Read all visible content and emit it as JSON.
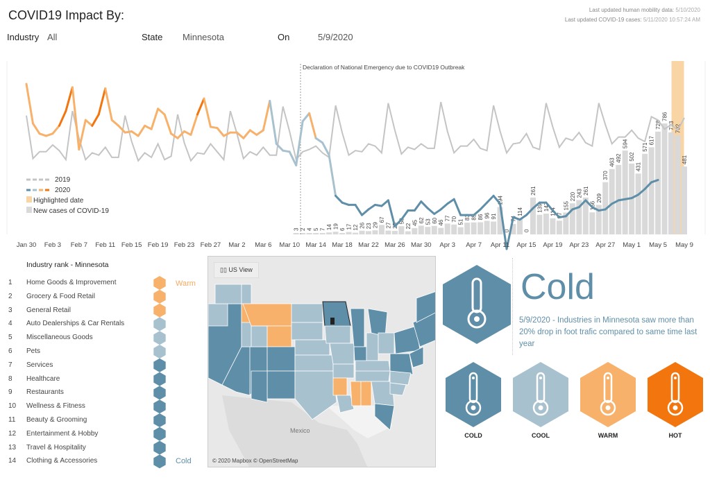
{
  "header": {
    "title": "COVID19 Impact By:",
    "industry_label": "Industry",
    "industry_value": "All",
    "state_label": "State",
    "state_value": "Minnesota",
    "on_label": "On",
    "on_value": "5/9/2020",
    "updated_mobility_label": "Last updated human mobility data:",
    "updated_mobility_value": "5/10/2020",
    "updated_cases_label": "Last updated COVID-19 cases:",
    "updated_cases_value": "5/11/2020 10:57:24 AM"
  },
  "colors": {
    "cold": "#5f8ea8",
    "cool": "#a8c1cf",
    "warm": "#f7b16a",
    "hot": "#f2750e",
    "line_2019": "#c4c4c4",
    "bar": "#d9d9d9",
    "highlight": "#f9d4a4"
  },
  "chart_data": {
    "type": "line",
    "title": "",
    "annotation": "Declaration of National Emergency due to COVID19 Outbreak",
    "x_start": "Jan 30",
    "x_end": "May 9",
    "x_ticks": [
      "Jan 30",
      "Feb 3",
      "Feb 7",
      "Feb 11",
      "Feb 15",
      "Feb 19",
      "Feb 23",
      "Feb 27",
      "Mar 2",
      "Mar 6",
      "Mar 10",
      "Mar 14",
      "Mar 18",
      "Mar 22",
      "Mar 26",
      "Mar 30",
      "Apr 3",
      "Apr 7",
      "Apr 11",
      "Apr 15",
      "Apr 19",
      "Apr 23",
      "Apr 27",
      "May 1",
      "May 5",
      "May 9"
    ],
    "emergency_date": "Mar 13",
    "highlighted_date": "May 8",
    "legend": [
      "2019",
      "2020",
      "Highlighted date",
      "New cases of COVID-19"
    ],
    "series": [
      {
        "name": "2019",
        "values": [
          0.72,
          0.34,
          0.4,
          0.4,
          0.46,
          0.41,
          0.33,
          0.76,
          0.52,
          0.33,
          0.39,
          0.37,
          0.44,
          0.35,
          0.35,
          0.72,
          0.49,
          0.32,
          0.39,
          0.35,
          0.47,
          0.33,
          0.36,
          0.73,
          0.48,
          0.32,
          0.39,
          0.38,
          0.47,
          0.4,
          0.33,
          0.76,
          0.56,
          0.34,
          0.4,
          0.37,
          0.44,
          0.37,
          0.37,
          0.8,
          0.58,
          0.33,
          0.4,
          0.42,
          0.45,
          0.39,
          0.35,
          0.81,
          0.57,
          0.37,
          0.41,
          0.4,
          0.47,
          0.45,
          0.39,
          0.83,
          0.59,
          0.38,
          0.44,
          0.42,
          0.47,
          0.43,
          0.43,
          0.84,
          0.58,
          0.39,
          0.45,
          0.45,
          0.51,
          0.43,
          0.41,
          0.81,
          0.58,
          0.39,
          0.47,
          0.48,
          0.56,
          0.44,
          0.42,
          0.83,
          0.62,
          0.44,
          0.52,
          0.5,
          0.57,
          0.48,
          0.45,
          0.83,
          0.64,
          0.47,
          0.53,
          0.53,
          0.59,
          0.52,
          0.49,
          0.71,
          0.68,
          0.6,
          0.64,
          0.59,
          0.7
        ]
      },
      {
        "name": "2020",
        "values": [
          1.0,
          0.65,
          0.56,
          0.54,
          0.56,
          0.63,
          0.76,
          0.97,
          0.42,
          0.68,
          0.63,
          0.73,
          0.96,
          0.68,
          0.63,
          0.57,
          0.58,
          0.54,
          0.63,
          0.6,
          0.78,
          0.73,
          0.56,
          0.52,
          0.58,
          0.55,
          0.73,
          0.87,
          0.62,
          0.61,
          0.54,
          0.57,
          0.57,
          0.52,
          0.59,
          0.55,
          0.59,
          0.85,
          0.47,
          0.41,
          0.4,
          0.28,
          0.67,
          0.74,
          0.52,
          0.48,
          0.37,
          0.01,
          -0.05,
          -0.07,
          -0.07,
          -0.16,
          -0.11,
          -0.07,
          -0.08,
          -0.03,
          -0.26,
          -0.2,
          -0.12,
          -0.12,
          -0.04,
          -0.1,
          -0.15,
          -0.11,
          -0.06,
          -0.02,
          -0.16,
          -0.16,
          -0.16,
          -0.11,
          -0.05,
          0.01,
          -0.06,
          -0.46,
          -0.18,
          -0.2,
          -0.16,
          -0.1,
          -0.05,
          -0.05,
          -0.12,
          -0.18,
          -0.17,
          -0.11,
          -0.09,
          -0.03,
          -0.09,
          -0.12,
          -0.11,
          -0.06,
          -0.03,
          -0.02,
          -0.01,
          0.02,
          0.07,
          0.13,
          0.15
        ]
      }
    ],
    "bars": {
      "name": "New cases of COVID-19",
      "values": [
        3,
        2,
        4,
        5,
        7,
        14,
        19,
        6,
        17,
        12,
        26,
        23,
        29,
        67,
        27,
        25,
        58,
        22,
        45,
        62,
        53,
        60,
        46,
        77,
        70,
        51,
        83,
        85,
        86,
        96,
        91,
        194,
        0,
        74,
        114,
        0,
        261,
        139,
        147,
        114,
        97,
        155,
        220,
        243,
        261,
        156,
        209,
        370,
        463,
        492,
        594,
        502,
        431,
        571,
        617,
        728,
        786,
        723,
        702,
        481
      ]
    }
  },
  "industry_rank": {
    "title": "Industry rank - Minnesota",
    "warm_label": "Warm",
    "cold_label": "Cold",
    "items": [
      {
        "rank": "1",
        "name": "Home Goods & Improvement",
        "level": "warm"
      },
      {
        "rank": "2",
        "name": "Grocery & Food Retail",
        "level": "warm"
      },
      {
        "rank": "3",
        "name": "General Retail",
        "level": "warm"
      },
      {
        "rank": "4",
        "name": "Auto Dealerships & Car Rentals",
        "level": "cool"
      },
      {
        "rank": "5",
        "name": "Miscellaneous Goods",
        "level": "cool"
      },
      {
        "rank": "6",
        "name": "Pets",
        "level": "cool"
      },
      {
        "rank": "7",
        "name": "Services",
        "level": "cold"
      },
      {
        "rank": "8",
        "name": "Healthcare",
        "level": "cold"
      },
      {
        "rank": "9",
        "name": "Restaurants",
        "level": "cold"
      },
      {
        "rank": "10",
        "name": "Wellness & Fitness",
        "level": "cold"
      },
      {
        "rank": "11",
        "name": "Beauty & Grooming",
        "level": "cold"
      },
      {
        "rank": "12",
        "name": "Entertainment & Hobby",
        "level": "cold"
      },
      {
        "rank": "13",
        "name": "Travel & Hospitality",
        "level": "cold"
      },
      {
        "rank": "14",
        "name": "Clothing & Accessories",
        "level": "cold"
      }
    ]
  },
  "map": {
    "view_button": "US View",
    "country_label": "Mexico",
    "credit": "© 2020 Mapbox © OpenStreetMap"
  },
  "summary": {
    "status": "Cold",
    "description": "5/9/2020 - Industries in Minnesota saw more than 20% drop in foot trafic compared to same time last year",
    "categories": [
      {
        "label": "COLD",
        "level": "cold"
      },
      {
        "label": "COOL",
        "level": "cool"
      },
      {
        "label": "WARM",
        "level": "warm"
      },
      {
        "label": "HOT",
        "level": "hot"
      }
    ]
  }
}
